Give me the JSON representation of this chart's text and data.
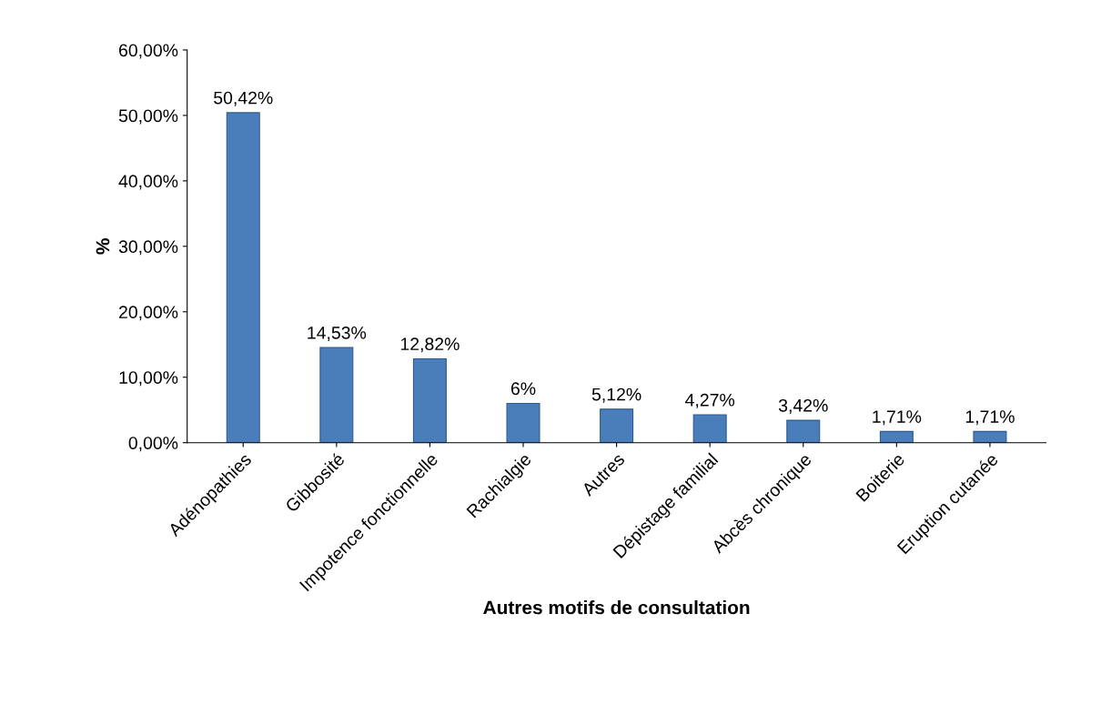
{
  "chart_data": {
    "type": "bar",
    "xlabel": "Autres motifs de consultation",
    "ylabel": "%",
    "categories": [
      "Adénopathies",
      "Gibbosité",
      "Impotence fonctionnelle",
      "Rachialgie",
      "Autres",
      "Dépistage familial",
      "Abcès chronique",
      "Boiterie",
      "Eruption cutanée"
    ],
    "values": [
      50.42,
      14.53,
      12.82,
      6,
      5.12,
      4.27,
      3.42,
      1.71,
      1.71
    ],
    "value_labels": [
      "50,42%",
      "14,53%",
      "12,82%",
      "6%",
      "5,12%",
      "4,27%",
      "3,42%",
      "1,71%",
      "1,71%"
    ],
    "color": "#4a7ebb",
    "ylim": [
      0,
      60
    ],
    "yticks": [
      {
        "value": 0,
        "label": "0,00%"
      },
      {
        "value": 10,
        "label": "10,00%"
      },
      {
        "value": 20,
        "label": "20,00%"
      },
      {
        "value": 30,
        "label": "30,00%"
      },
      {
        "value": 40,
        "label": "40,00%"
      },
      {
        "value": 50,
        "label": "50,00%"
      },
      {
        "value": 60,
        "label": "60,00%"
      }
    ],
    "grid": false
  }
}
